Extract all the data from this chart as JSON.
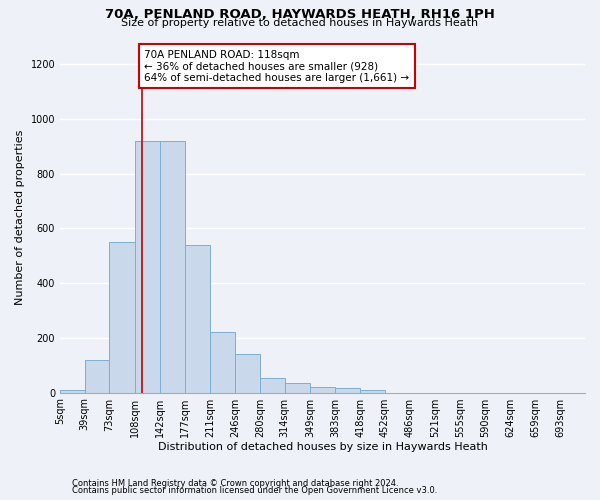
{
  "title_line1": "70A, PENLAND ROAD, HAYWARDS HEATH, RH16 1PH",
  "title_line2": "Size of property relative to detached houses in Haywards Heath",
  "xlabel": "Distribution of detached houses by size in Haywards Heath",
  "ylabel": "Number of detached properties",
  "footer_line1": "Contains HM Land Registry data © Crown copyright and database right 2024.",
  "footer_line2": "Contains public sector information licensed under the Open Government Licence v3.0.",
  "annotation_line1": "70A PENLAND ROAD: 118sqm",
  "annotation_line2": "← 36% of detached houses are smaller (928)",
  "annotation_line3": "64% of semi-detached houses are larger (1,661) →",
  "property_size": 118,
  "bin_edges": [
    5,
    39,
    73,
    108,
    142,
    177,
    211,
    246,
    280,
    314,
    349,
    383,
    418,
    452,
    486,
    521,
    555,
    590,
    624,
    659,
    693
  ],
  "bar_heights": [
    10,
    120,
    550,
    920,
    920,
    540,
    220,
    140,
    55,
    35,
    20,
    15,
    10,
    0,
    0,
    0,
    0,
    0,
    0,
    0
  ],
  "bar_color": "#c9d9eb",
  "bar_edgecolor": "#7bafd4",
  "redline_x": 118,
  "ylim": [
    0,
    1280
  ],
  "xlim": [
    5,
    727
  ],
  "yticks": [
    0,
    200,
    400,
    600,
    800,
    1000,
    1200
  ],
  "background_color": "#eef2f8",
  "grid_color": "#ffffff",
  "annotation_box_color": "#ffffff",
  "annotation_box_edgecolor": "#cc0000",
  "redline_color": "#cc0000",
  "title_fontsize": 9.5,
  "subtitle_fontsize": 8,
  "ylabel_fontsize": 8,
  "xlabel_fontsize": 8,
  "tick_fontsize": 7,
  "footer_fontsize": 6,
  "annotation_fontsize": 7.5
}
